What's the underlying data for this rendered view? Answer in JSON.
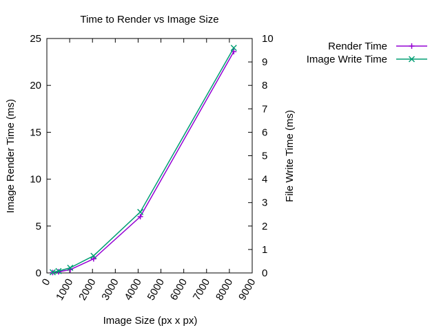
{
  "chart_data": {
    "type": "line",
    "title": "Time to Render vs Image Size",
    "xlabel": "Image Size (px x px)",
    "ylabel": "Image Render Time (ms)",
    "y2label": "File Write Time (ms)",
    "xlim": [
      0,
      9000
    ],
    "ylim": [
      0,
      25
    ],
    "y2lim": [
      0,
      10
    ],
    "xticks": [
      "0",
      "1000",
      "2000",
      "3000",
      "4000",
      "5000",
      "6000",
      "7000",
      "8000",
      "9000"
    ],
    "yticks": [
      "0",
      "5",
      "10",
      "15",
      "20",
      "25"
    ],
    "y2ticks": [
      "0",
      "1",
      "2",
      "3",
      "4",
      "5",
      "6",
      "7",
      "8",
      "9",
      "10"
    ],
    "grid": false,
    "legend_position": "top-right, outside plot",
    "series": [
      {
        "name": "Render Time",
        "axis": "left",
        "color": "#9400d3",
        "marker": "plus",
        "x": [
          256,
          512,
          1024,
          2048,
          4096,
          8192
        ],
        "values": [
          0.05,
          0.12,
          0.35,
          1.5,
          6.0,
          23.6
        ]
      },
      {
        "name": "Image Write Time",
        "axis": "right",
        "color": "#009e73",
        "marker": "cross",
        "x": [
          256,
          512,
          1024,
          2048,
          4096,
          8192
        ],
        "values": [
          0.03,
          0.08,
          0.22,
          0.73,
          2.6,
          9.6
        ]
      }
    ]
  }
}
